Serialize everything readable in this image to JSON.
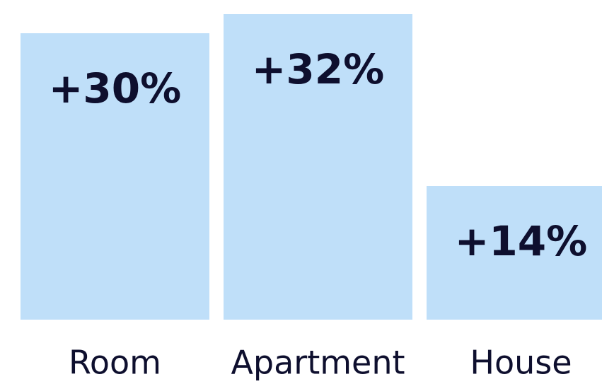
{
  "chart_data": {
    "type": "bar",
    "categories": [
      "Room",
      "Apartment",
      "House"
    ],
    "values": [
      30,
      32,
      14
    ],
    "value_labels": [
      "+30%",
      "+32%",
      "+14%"
    ],
    "color": "#bfdff9"
  }
}
